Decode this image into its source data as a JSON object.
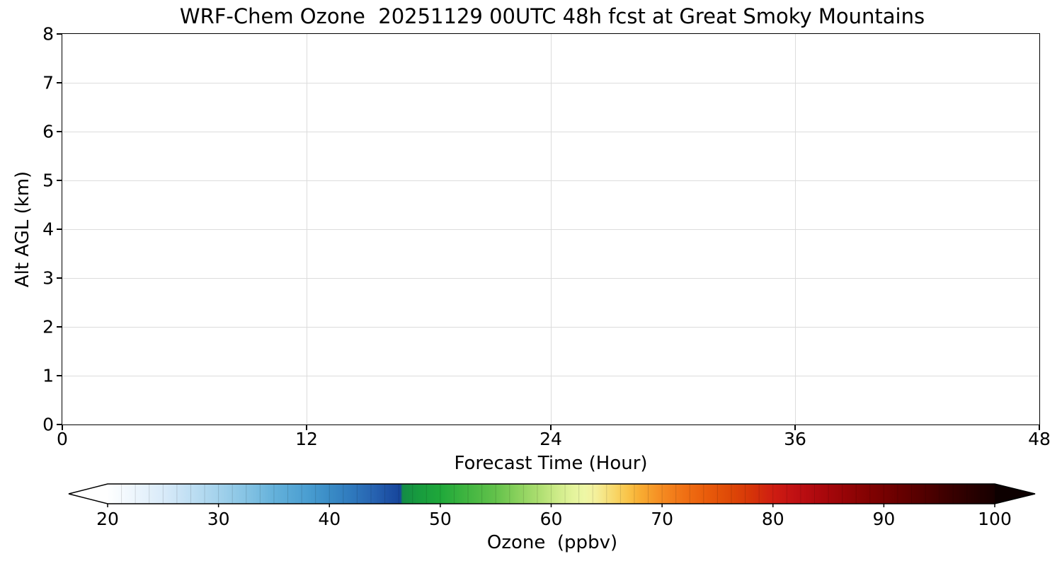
{
  "chart_data": {
    "type": "heatmap",
    "title": "WRF-Chem Ozone  20251129 00UTC 48h fcst at Great Smoky Mountains",
    "xlabel": "Forecast Time (Hour)",
    "ylabel": "Alt AGL (km)",
    "xlim": [
      0,
      48
    ],
    "ylim": [
      0,
      8
    ],
    "x_ticks": [
      0,
      12,
      24,
      36,
      48
    ],
    "x_tick_labels": [
      "0",
      "12",
      "24",
      "36",
      "48"
    ],
    "y_ticks": [
      0,
      1,
      2,
      3,
      4,
      5,
      6,
      7,
      8
    ],
    "y_tick_labels": [
      "0",
      "1",
      "2",
      "3",
      "4",
      "5",
      "6",
      "7",
      "8"
    ],
    "grid": true,
    "legend": "none",
    "series": [],
    "plot_area_empty": true,
    "colorbar": {
      "label": "Ozone  (ppbv)",
      "orientation": "horizontal",
      "min": 20,
      "max": 100,
      "ticks": [
        20,
        30,
        40,
        50,
        60,
        70,
        80,
        90,
        100
      ],
      "tick_labels": [
        "20",
        "30",
        "40",
        "50",
        "60",
        "70",
        "80",
        "90",
        "100"
      ],
      "extend": "both",
      "under_color": "#ffffff",
      "over_color": "#0d0000",
      "level_step": 1.25,
      "stops": [
        {
          "v": 20,
          "c": "#feffff"
        },
        {
          "v": 22,
          "c": "#f0f7fd"
        },
        {
          "v": 25,
          "c": "#d9ebf9"
        },
        {
          "v": 27,
          "c": "#c4e1f4"
        },
        {
          "v": 30,
          "c": "#a3d2ec"
        },
        {
          "v": 33,
          "c": "#7fc0e2"
        },
        {
          "v": 35,
          "c": "#64b1da"
        },
        {
          "v": 38,
          "c": "#4a9ed1"
        },
        {
          "v": 40,
          "c": "#3a8cc6"
        },
        {
          "v": 42,
          "c": "#2f79bd"
        },
        {
          "v": 44,
          "c": "#2763b1"
        },
        {
          "v": 45.5,
          "c": "#1c4fa3"
        },
        {
          "v": 46.4,
          "c": "#16459b"
        },
        {
          "v": 46.6,
          "c": "#148c46"
        },
        {
          "v": 48,
          "c": "#179b3e"
        },
        {
          "v": 50,
          "c": "#1fa83a"
        },
        {
          "v": 52,
          "c": "#3bb33f"
        },
        {
          "v": 55,
          "c": "#63c24b"
        },
        {
          "v": 57,
          "c": "#8ad15d"
        },
        {
          "v": 59,
          "c": "#afdf72"
        },
        {
          "v": 60,
          "c": "#c3e780"
        },
        {
          "v": 61,
          "c": "#d5ee8f"
        },
        {
          "v": 62,
          "c": "#e4f49c"
        },
        {
          "v": 63,
          "c": "#eef7a6"
        },
        {
          "v": 64,
          "c": "#f4f09c"
        },
        {
          "v": 65,
          "c": "#f6e17e"
        },
        {
          "v": 66,
          "c": "#f8d260"
        },
        {
          "v": 67,
          "c": "#f9c247"
        },
        {
          "v": 68,
          "c": "#f8ad33"
        },
        {
          "v": 70,
          "c": "#f58b21"
        },
        {
          "v": 72,
          "c": "#f07014"
        },
        {
          "v": 74,
          "c": "#e95c0b"
        },
        {
          "v": 76,
          "c": "#df4a07"
        },
        {
          "v": 78,
          "c": "#d63508"
        },
        {
          "v": 80,
          "c": "#cf1d12"
        },
        {
          "v": 82,
          "c": "#c01013"
        },
        {
          "v": 84,
          "c": "#ae090e"
        },
        {
          "v": 86,
          "c": "#9c0508"
        },
        {
          "v": 88,
          "c": "#880303"
        },
        {
          "v": 90,
          "c": "#760101"
        },
        {
          "v": 92,
          "c": "#620000"
        },
        {
          "v": 94,
          "c": "#4e0000"
        },
        {
          "v": 96,
          "c": "#3a0000"
        },
        {
          "v": 98,
          "c": "#280000"
        },
        {
          "v": 100,
          "c": "#170000"
        }
      ]
    }
  }
}
